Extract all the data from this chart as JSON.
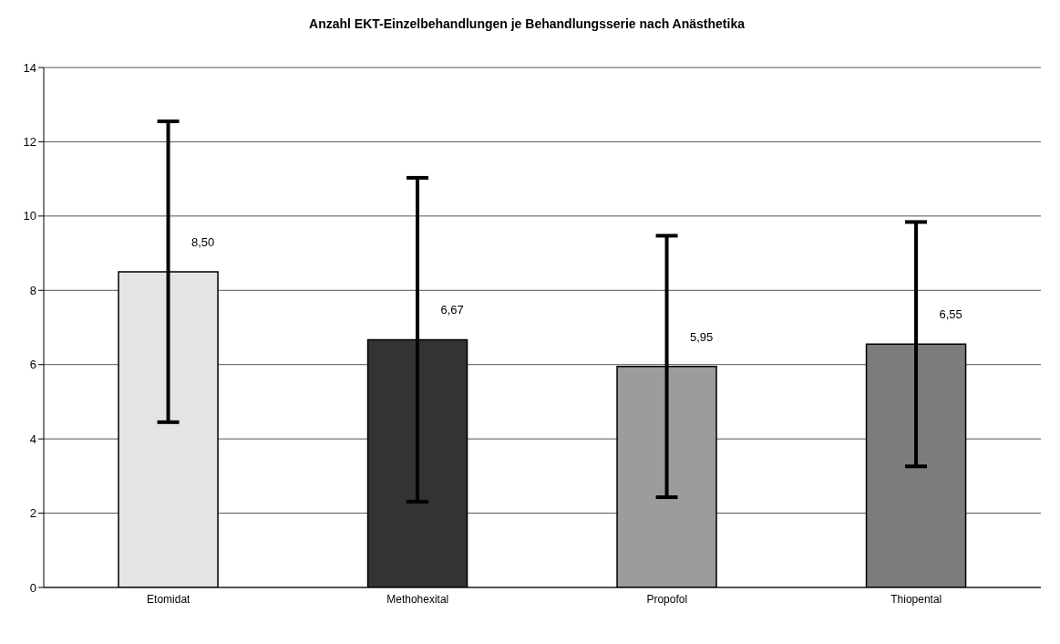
{
  "chart_data": {
    "type": "bar",
    "title": "Anzahl EKT-Einzelbehandlungen je Behandlungsserie nach Anästhetika",
    "categories": [
      "Etomidat",
      "Methohexital",
      "Propofol",
      "Thiopental"
    ],
    "values": [
      8.5,
      6.67,
      5.95,
      6.55
    ],
    "errors": [
      4.05,
      4.36,
      3.52,
      3.29
    ],
    "value_labels": [
      "8,50",
      "6,67",
      "5,95",
      "6,55"
    ],
    "colors": [
      "#e4e4e4",
      "#333333",
      "#9c9c9c",
      "#7c7c7c"
    ],
    "ylim": [
      0,
      14
    ],
    "yticks": [
      0,
      2,
      4,
      6,
      8,
      10,
      12,
      14
    ],
    "grid": "y",
    "legend": false
  }
}
